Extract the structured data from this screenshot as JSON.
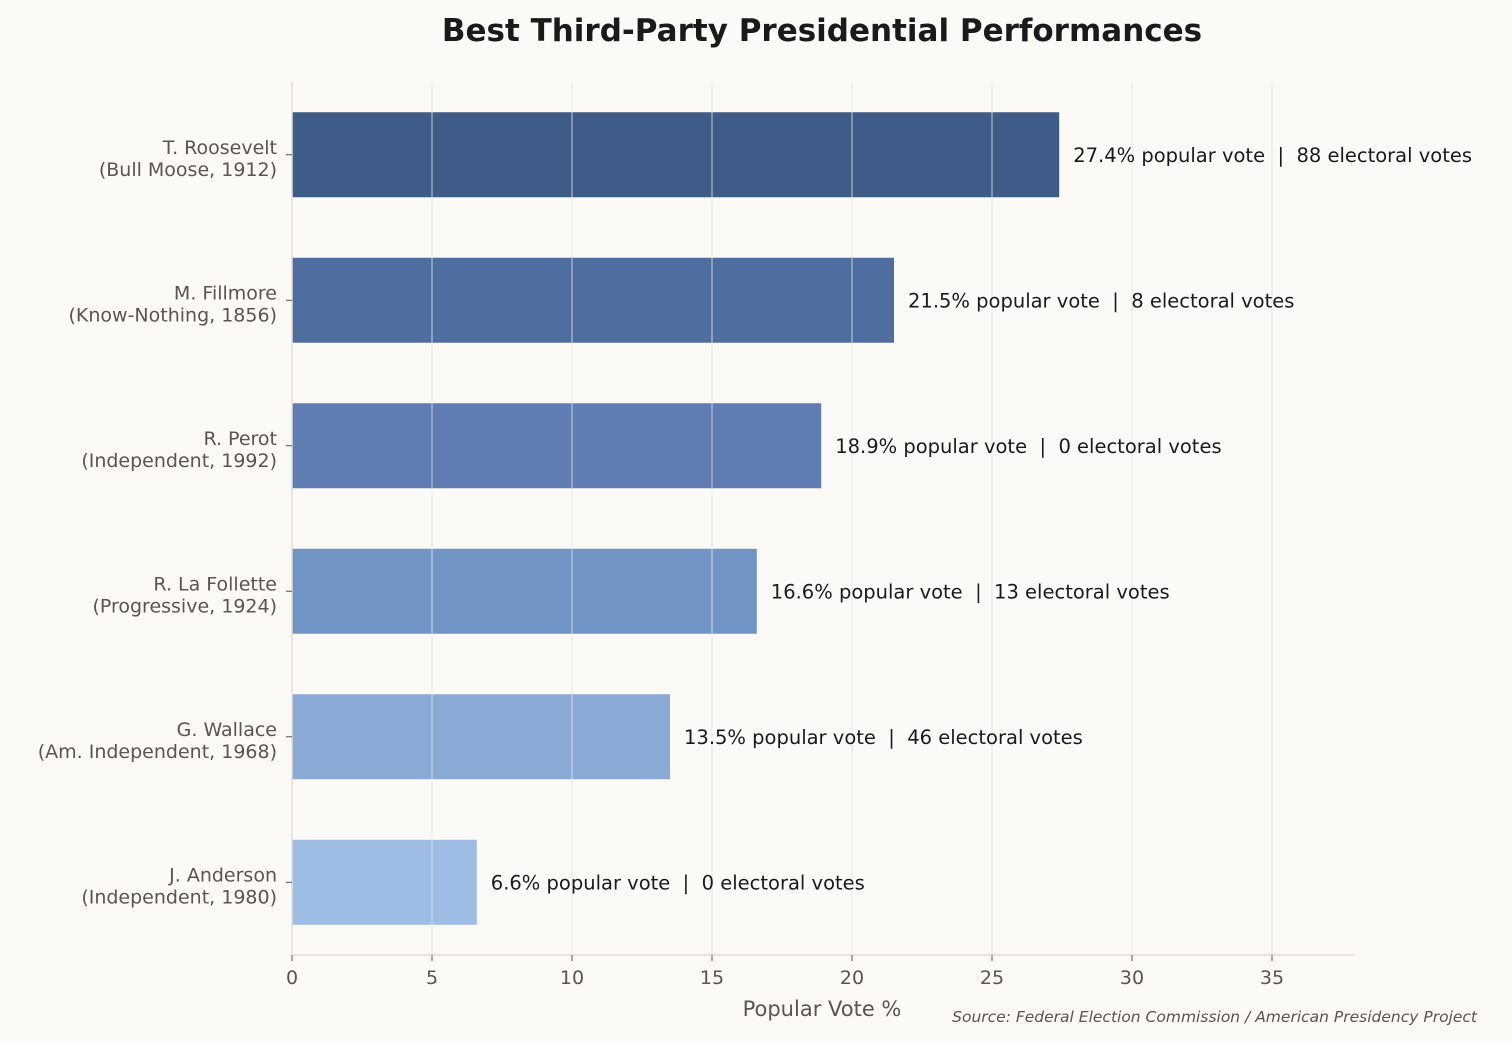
{
  "chart_data": {
    "type": "bar",
    "orientation": "horizontal",
    "title": "Best Third-Party Presidential Performances",
    "xlabel": "Popular Vote %",
    "ylabel": "",
    "xlim": [
      0,
      38
    ],
    "xticks": [
      0,
      5,
      10,
      15,
      20,
      25,
      30,
      35
    ],
    "grid": "vertical",
    "categories": [
      [
        "T. Roosevelt",
        "(Bull Moose, 1912)"
      ],
      [
        "M. Fillmore",
        "(Know-Nothing, 1856)"
      ],
      [
        "R. Perot",
        "(Independent, 1992)"
      ],
      [
        "R. La Follette",
        "(Progressive, 1924)"
      ],
      [
        "G. Wallace",
        "(Am. Independent, 1968)"
      ],
      [
        "J. Anderson",
        "(Independent, 1980)"
      ]
    ],
    "values": [
      27.4,
      21.5,
      18.9,
      16.6,
      13.5,
      6.6
    ],
    "electoral_votes": [
      88,
      8,
      0,
      13,
      46,
      0
    ],
    "data_labels": [
      "27.4% popular vote  |  88 electoral votes",
      "21.5% popular vote  |  8 electoral votes",
      "18.9% popular vote  |  0 electoral votes",
      "16.6% popular vote  |  13 electoral votes",
      "13.5% popular vote  |  46 electoral votes",
      "6.6% popular vote  |  0 electoral votes"
    ],
    "colors": [
      "#3f5c88",
      "#4e6e9f",
      "#5f7db2",
      "#7094c4",
      "#8aaad6",
      "#9ebde4"
    ],
    "source": "Source: Federal Election Commission / American Presidency Project"
  }
}
